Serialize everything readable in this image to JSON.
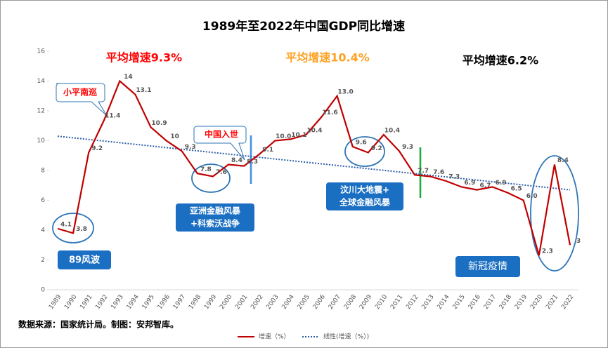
{
  "chart_data": {
    "type": "line",
    "title": "1989年至2022年中国GDP同比增速",
    "categories": [
      "1989",
      "1990",
      "1991",
      "1992",
      "1993",
      "1994",
      "1995",
      "1996",
      "1997",
      "1998",
      "1999",
      "2000",
      "2001",
      "2002",
      "2003",
      "2004",
      "2005",
      "2006",
      "2007",
      "2008",
      "2009",
      "2010",
      "2011",
      "2012",
      "2013",
      "2014",
      "2015",
      "2016",
      "2017",
      "2018",
      "2019",
      "2020",
      "2021",
      "2022"
    ],
    "series": [
      {
        "name": "增速（%）",
        "color": "#c00000",
        "values": [
          4.1,
          3.8,
          9.2,
          11.4,
          14,
          13.1,
          10.9,
          10,
          9.3,
          7.8,
          7.6,
          8.4,
          8.3,
          9.1,
          10.0,
          10.1,
          10.4,
          11.6,
          13.0,
          9.6,
          9.2,
          10.4,
          9.3,
          7.7,
          7.6,
          7.3,
          6.9,
          6.7,
          6.9,
          6.5,
          6.0,
          2.3,
          8.4,
          3
        ],
        "value_labels": [
          "4.1",
          "3.8",
          "9.2",
          "11.4",
          "14",
          "13.1",
          "10.9",
          "10",
          "9.3",
          "7.8",
          "7.6",
          "8.4",
          "8.3",
          "9.1",
          "10.0",
          "10.1",
          "10.4",
          "11.6",
          "13.0",
          "9.6",
          "9.2",
          "10.4",
          "9.3",
          "7.7",
          "7.6",
          "7.3",
          "6.9",
          "6.7",
          "6.9",
          "6.5",
          "6.0",
          "2.3",
          "8.4",
          "3"
        ]
      }
    ],
    "trendline": {
      "name": "线性(增速（%）)",
      "color": "#2e5fa8",
      "values": [
        10.3,
        6.7
      ]
    },
    "ylim": [
      0,
      16
    ],
    "yticks": [
      0,
      2,
      4,
      6,
      8,
      10,
      12,
      14,
      16
    ],
    "annotations": [
      "平均增速9.3%",
      "平均增速10.4%",
      "平均增速6.2%",
      "小平南巡",
      "中国入世",
      "亚洲金融风暴",
      "+科索沃战争",
      "汶川大地震+",
      "全球金融风暴",
      "89风波",
      "新冠疫情"
    ],
    "source": "数据来源：国家统计局。制图：安邦智库。"
  }
}
